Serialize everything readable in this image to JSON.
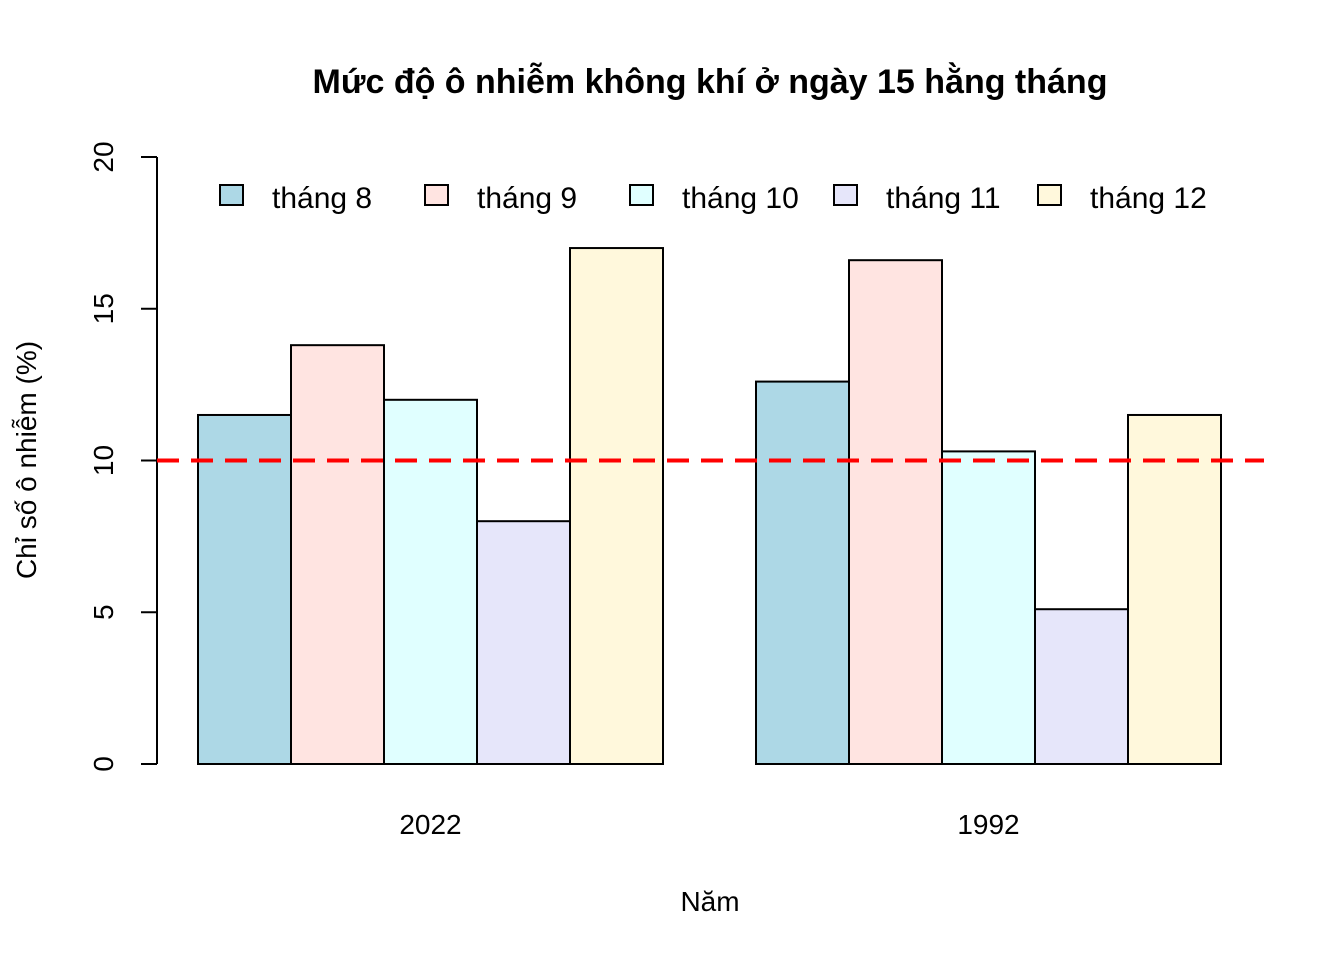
{
  "chart_data": {
    "type": "bar",
    "title": "Mức độ ô nhiễm không khí ở ngày 15 hằng tháng",
    "xlabel": "Năm",
    "ylabel": "Chỉ số ô nhiễm (%)",
    "categories": [
      "2022",
      "1992"
    ],
    "series": [
      {
        "name": "tháng 8",
        "color": "#ADD8E6",
        "values": [
          11.5,
          12.6
        ]
      },
      {
        "name": "tháng 9",
        "color": "#FFE4E1",
        "values": [
          13.8,
          16.6
        ]
      },
      {
        "name": "tháng 10",
        "color": "#E0FFFF",
        "values": [
          12.0,
          10.3
        ]
      },
      {
        "name": "tháng 11",
        "color": "#E6E6FA",
        "values": [
          8.0,
          5.1
        ]
      },
      {
        "name": "tháng 12",
        "color": "#FFF8DC",
        "values": [
          17.0,
          11.5
        ]
      }
    ],
    "ylim": [
      0,
      20
    ],
    "yticks": [
      0,
      5,
      10,
      15,
      20
    ],
    "reference_line": {
      "y": 10,
      "color": "#FF0000",
      "style": "dashed"
    },
    "grid": false,
    "legend_position": "top",
    "bar_mode": "grouped"
  }
}
